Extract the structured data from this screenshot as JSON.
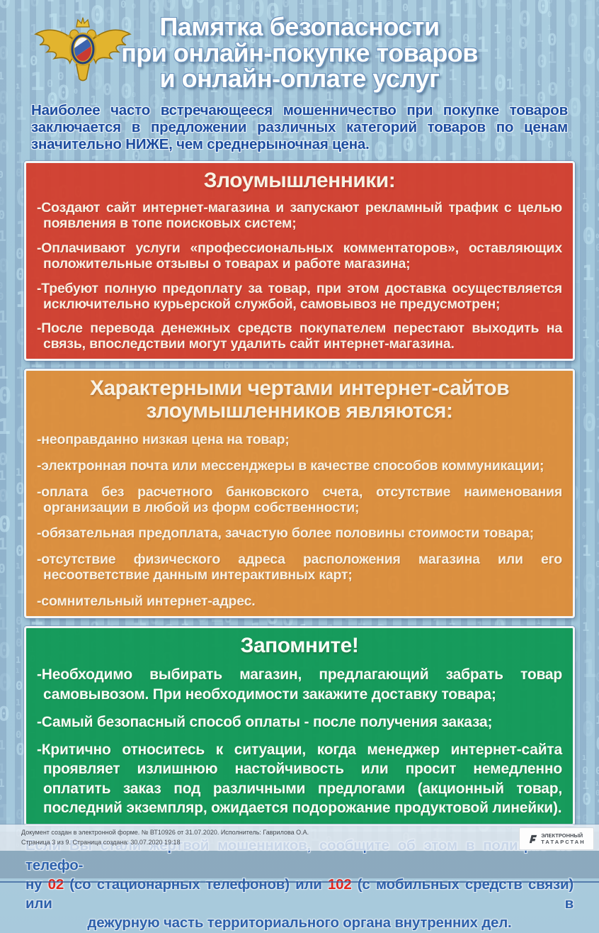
{
  "colors": {
    "background": "#a3c6da",
    "matrix_digit": "#cdeef9",
    "box_red": "#d33d2b",
    "box_orange": "#de8d38",
    "box_green": "#119956",
    "title_text": "#fefefe",
    "intro_text": "#1d4c9e",
    "phone_number_red": "#e3261d"
  },
  "header": {
    "emblem": "mvd-double-headed-eagle-emblem",
    "title_line1": "Памятка безопасности",
    "title_line2": "при онлайн-покупке товаров",
    "title_line3": "и онлайн-оплате услуг"
  },
  "intro": "Наиболее часто встречающееся мошенничество при покупке товаров заключается в предложении различных категорий товаров по ценам значительно НИЖЕ, чем среднерыночная цена.",
  "sections": [
    {
      "title": "Злоумышленники:",
      "items": [
        "-Создают сайт интернет-магазина и запускают рекламный трафик с целью появления в топе поисковых систем;",
        "-Оплачивают услуги «профессиональных комментаторов», оставляющих положительные отзывы о товарах и работе магазина;",
        "-Требуют полную предоплату за товар, при этом доставка осуществляется исключительно курьерской службой, самовывоз не предусмотрен;",
        "-После перевода денежных средств покупателем перестают выходить на связь, впоследствии могут удалить сайт интернет-магазина."
      ]
    },
    {
      "title": "Характерными чертами интернет-сайтов злоумышленников являются:",
      "items": [
        "-неоправданно низкая цена на товар;",
        "-электронная почта или мессенджеры в качестве способов коммуникации;",
        "-оплата без расчетного банковского счета, отсутствие наименования организации в любой из форм собственности;",
        "-обязательная предоплата, зачастую более половины стоимости товара;",
        "-отсутствие физического адреса расположения магазина или его несоответствие данным интерактивных карт;",
        "-сомнительный интернет-адрес."
      ]
    },
    {
      "title": "Запомните!",
      "items": [
        "-Необходимо выбирать магазин, предлагающий забрать товар самовывозом. При необходимости закажите доставку товара;",
        "-Самый безопасный способ оплаты - после получения заказа;",
        "-Критично относитесь к ситуации, когда менеджер интернет-сайта проявляет излишнюю настойчивость или просит немедленно оплатить заказ под различными предлогами (акционный товар, последний экземпляр, ожидается подорожание продуктовой линейки)."
      ]
    }
  ],
  "phone_notice": {
    "line1": "Если Вы стали жертвой мошенников, сообщите об этом   в полицию по телефо-",
    "line2_prefix": "ну ",
    "line2_num1": "02",
    "line2_mid": " (со стационарных телефонов) или ",
    "line2_num2": "102",
    "line2_suffix": " (с мобильных средств связи) или в",
    "line3": "дежурную часть территориального органа внутренних дел."
  },
  "document_footer": {
    "line1": "Документ создан в электронной форме. № ВТ10926 от 31.07.2020. Исполнитель: Гаврилова О.А.",
    "line2": "Страница 3 из 9. Страница создана: 30.07.2020 19:18",
    "logo_line1": "ЭЛЕКТРОННЫЙ",
    "logo_line2": "ТАТАРСТАН"
  }
}
